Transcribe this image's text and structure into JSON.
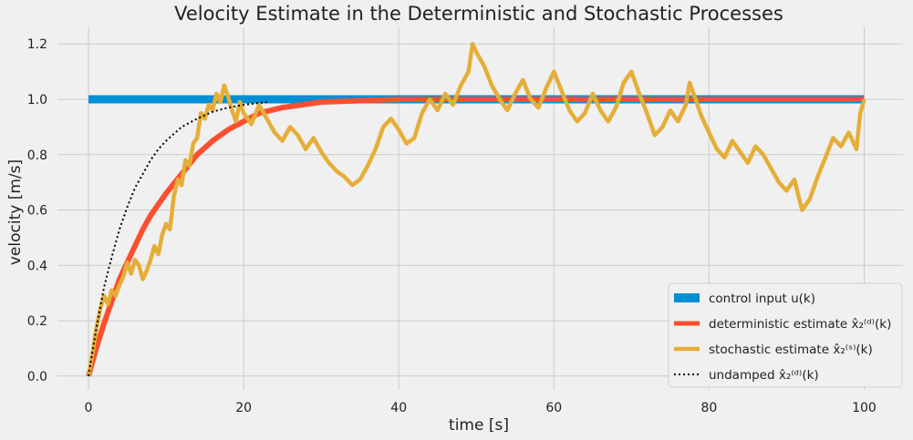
{
  "chart_data": {
    "type": "line",
    "title": "Velocity Estimate in the Deterministic and Stochastic Processes",
    "xlabel": "time [s]",
    "ylabel": "velocity [m/s]",
    "xlim": [
      -4,
      105
    ],
    "ylim": [
      -0.05,
      1.26
    ],
    "xticks": [
      0,
      20,
      40,
      60,
      80,
      100
    ],
    "yticks": [
      0.0,
      0.2,
      0.4,
      0.6,
      0.8,
      1.0,
      1.2
    ],
    "grid": true,
    "legend_position": "lower-right",
    "style": {
      "background": "#f0f0f0",
      "grid_color": "#cbcbcb",
      "colors": {
        "control": "#008fd5",
        "deterministic": "#fc4f30",
        "stochastic": "#e5ae38",
        "undamped": "#000000"
      }
    },
    "series": [
      {
        "key": "control",
        "name": "control input u(k)",
        "points": [
          [
            0,
            1.0
          ],
          [
            100,
            1.0
          ]
        ]
      },
      {
        "key": "deterministic",
        "name": "deterministic estimate x̂₂⁽ᵈ⁾(k)",
        "points": [
          [
            0,
            0.0
          ],
          [
            1,
            0.1
          ],
          [
            2,
            0.19
          ],
          [
            3,
            0.27
          ],
          [
            4,
            0.35
          ],
          [
            5,
            0.41
          ],
          [
            6,
            0.47
          ],
          [
            7,
            0.53
          ],
          [
            8,
            0.58
          ],
          [
            9,
            0.62
          ],
          [
            10,
            0.66
          ],
          [
            12,
            0.73
          ],
          [
            14,
            0.8
          ],
          [
            16,
            0.85
          ],
          [
            18,
            0.89
          ],
          [
            20,
            0.92
          ],
          [
            22,
            0.95
          ],
          [
            25,
            0.97
          ],
          [
            30,
            0.99
          ],
          [
            35,
            0.995
          ],
          [
            40,
            1.0
          ],
          [
            50,
            1.0
          ],
          [
            60,
            1.0
          ],
          [
            70,
            1.0
          ],
          [
            80,
            1.0
          ],
          [
            90,
            1.0
          ],
          [
            100,
            1.0
          ]
        ]
      },
      {
        "key": "stochastic",
        "name": "stochastic estimate x̂₂⁽ˢ⁾(k)",
        "points": [
          [
            0,
            0.0
          ],
          [
            0.5,
            0.08
          ],
          [
            1,
            0.17
          ],
          [
            1.5,
            0.24
          ],
          [
            2,
            0.29
          ],
          [
            2.5,
            0.26
          ],
          [
            3,
            0.31
          ],
          [
            3.5,
            0.29
          ],
          [
            4,
            0.33
          ],
          [
            4.5,
            0.36
          ],
          [
            5,
            0.41
          ],
          [
            5.5,
            0.37
          ],
          [
            6,
            0.42
          ],
          [
            6.5,
            0.4
          ],
          [
            7,
            0.35
          ],
          [
            7.5,
            0.38
          ],
          [
            8,
            0.42
          ],
          [
            8.5,
            0.47
          ],
          [
            9,
            0.44
          ],
          [
            9.5,
            0.51
          ],
          [
            10,
            0.55
          ],
          [
            10.5,
            0.53
          ],
          [
            11,
            0.65
          ],
          [
            11.5,
            0.71
          ],
          [
            12,
            0.69
          ],
          [
            12.5,
            0.78
          ],
          [
            13,
            0.76
          ],
          [
            13.5,
            0.84
          ],
          [
            14,
            0.86
          ],
          [
            14.5,
            0.95
          ],
          [
            15,
            0.93
          ],
          [
            15.5,
            0.98
          ],
          [
            16,
            0.96
          ],
          [
            16.5,
            1.02
          ],
          [
            17,
            0.99
          ],
          [
            17.5,
            1.05
          ],
          [
            18,
            1.01
          ],
          [
            18.5,
            0.96
          ],
          [
            19,
            0.92
          ],
          [
            19.5,
            0.99
          ],
          [
            20,
            0.95
          ],
          [
            21,
            0.91
          ],
          [
            22,
            0.98
          ],
          [
            23,
            0.93
          ],
          [
            24,
            0.88
          ],
          [
            25,
            0.85
          ],
          [
            26,
            0.9
          ],
          [
            27,
            0.87
          ],
          [
            28,
            0.82
          ],
          [
            29,
            0.86
          ],
          [
            30,
            0.81
          ],
          [
            31,
            0.77
          ],
          [
            32,
            0.74
          ],
          [
            33,
            0.72
          ],
          [
            34,
            0.69
          ],
          [
            35,
            0.71
          ],
          [
            36,
            0.76
          ],
          [
            37,
            0.82
          ],
          [
            38,
            0.9
          ],
          [
            39,
            0.93
          ],
          [
            40,
            0.89
          ],
          [
            41,
            0.84
          ],
          [
            42,
            0.86
          ],
          [
            43,
            0.95
          ],
          [
            44,
            1.0
          ],
          [
            45,
            0.96
          ],
          [
            46,
            1.02
          ],
          [
            47,
            0.98
          ],
          [
            48,
            1.05
          ],
          [
            49,
            1.1
          ],
          [
            49.5,
            1.2
          ],
          [
            50,
            1.17
          ],
          [
            51,
            1.12
          ],
          [
            52,
            1.05
          ],
          [
            53,
            1.0
          ],
          [
            54,
            0.96
          ],
          [
            55,
            1.02
          ],
          [
            56,
            1.07
          ],
          [
            57,
            1.0
          ],
          [
            58,
            0.97
          ],
          [
            59,
            1.04
          ],
          [
            60,
            1.1
          ],
          [
            61,
            1.03
          ],
          [
            62,
            0.96
          ],
          [
            63,
            0.92
          ],
          [
            64,
            0.95
          ],
          [
            65,
            1.02
          ],
          [
            66,
            0.96
          ],
          [
            67,
            0.92
          ],
          [
            68,
            0.97
          ],
          [
            69,
            1.06
          ],
          [
            70,
            1.1
          ],
          [
            71,
            1.02
          ],
          [
            72,
            0.95
          ],
          [
            73,
            0.87
          ],
          [
            74,
            0.9
          ],
          [
            75,
            0.96
          ],
          [
            76,
            0.92
          ],
          [
            77,
            0.98
          ],
          [
            77.5,
            1.06
          ],
          [
            78,
            1.02
          ],
          [
            79,
            0.94
          ],
          [
            80,
            0.88
          ],
          [
            81,
            0.82
          ],
          [
            82,
            0.79
          ],
          [
            83,
            0.85
          ],
          [
            84,
            0.81
          ],
          [
            85,
            0.77
          ],
          [
            86,
            0.83
          ],
          [
            87,
            0.8
          ],
          [
            88,
            0.75
          ],
          [
            89,
            0.7
          ],
          [
            90,
            0.67
          ],
          [
            91,
            0.71
          ],
          [
            92,
            0.6
          ],
          [
            93,
            0.64
          ],
          [
            94,
            0.72
          ],
          [
            95,
            0.79
          ],
          [
            96,
            0.86
          ],
          [
            97,
            0.83
          ],
          [
            98,
            0.88
          ],
          [
            99,
            0.82
          ],
          [
            99.5,
            0.95
          ],
          [
            100,
            1.0
          ]
        ]
      },
      {
        "key": "undamped",
        "name": "undamped x̂₂⁽ᵈ⁾(k)",
        "points": [
          [
            0,
            0.0
          ],
          [
            1,
            0.17
          ],
          [
            2,
            0.32
          ],
          [
            3,
            0.43
          ],
          [
            4,
            0.53
          ],
          [
            5,
            0.61
          ],
          [
            6,
            0.68
          ],
          [
            7,
            0.73
          ],
          [
            8,
            0.78
          ],
          [
            9,
            0.82
          ],
          [
            10,
            0.85
          ],
          [
            12,
            0.9
          ],
          [
            14,
            0.93
          ],
          [
            16,
            0.955
          ],
          [
            18,
            0.97
          ],
          [
            20,
            0.98
          ],
          [
            23,
            0.99
          ]
        ]
      }
    ]
  }
}
